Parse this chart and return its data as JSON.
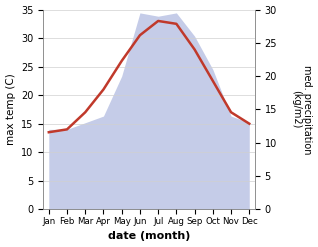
{
  "months": [
    "Jan",
    "Feb",
    "Mar",
    "Apr",
    "May",
    "Jun",
    "Jul",
    "Aug",
    "Sep",
    "Oct",
    "Nov",
    "Dec"
  ],
  "temp": [
    13.5,
    14.0,
    17.0,
    21.0,
    26.0,
    30.5,
    33.0,
    32.5,
    28.0,
    22.5,
    17.0,
    15.0
  ],
  "precip": [
    12.0,
    12.0,
    13.0,
    14.0,
    20.0,
    29.5,
    29.0,
    29.5,
    26.0,
    21.0,
    14.0,
    13.0
  ],
  "temp_color": "#c0392b",
  "precip_fill_color": "#c5cce8",
  "temp_ylim": [
    0,
    35
  ],
  "precip_ylim": [
    0,
    30
  ],
  "temp_yticks": [
    0,
    5,
    10,
    15,
    20,
    25,
    30,
    35
  ],
  "precip_yticks": [
    0,
    5,
    10,
    15,
    20,
    25,
    30
  ],
  "xlabel": "date (month)",
  "ylabel_left": "max temp (C)",
  "ylabel_right": "med. precipitation\n(kg/m2)",
  "bg_color": "#ffffff",
  "grid_color": "#d0d0d0"
}
